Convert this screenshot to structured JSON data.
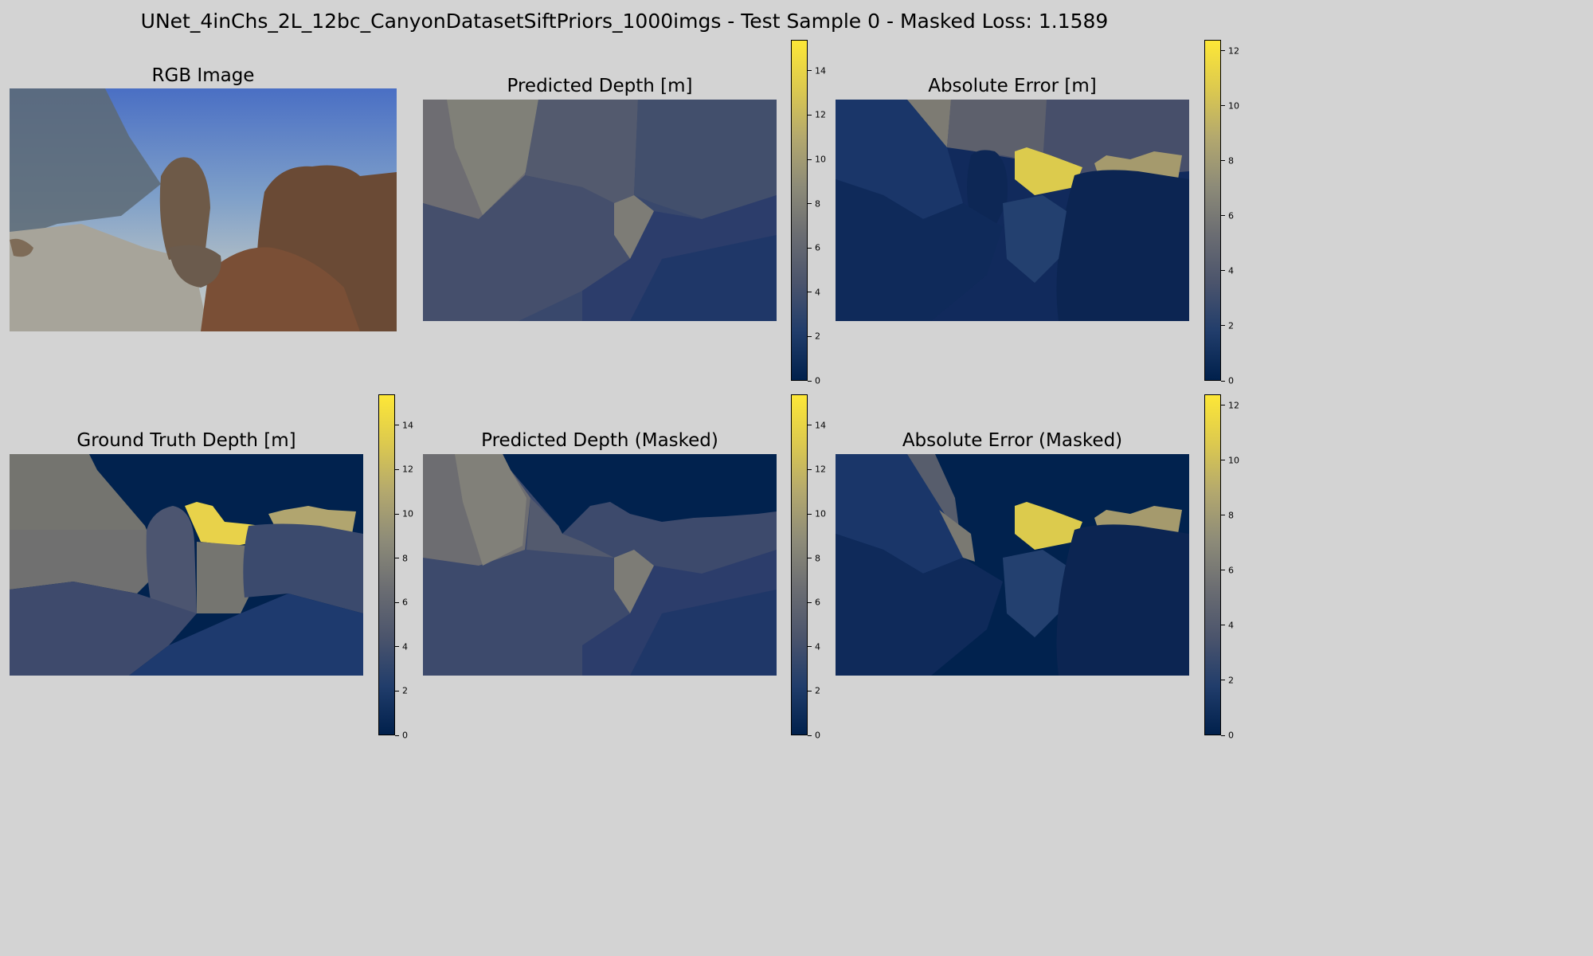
{
  "figure": {
    "suptitle": "UNet_4inChs_2L_12bc_CanyonDatasetSiftPriors_1000imgs - Test Sample 0 - Masked Loss: 1.1589"
  },
  "colormap": {
    "name": "cividis",
    "stops": [
      "#00204c",
      "#213d6b",
      "#4b546c",
      "#6b6d72",
      "#8d8b78",
      "#b3a86e",
      "#dcc94f",
      "#fde737"
    ]
  },
  "chart_data": [
    {
      "type": "image",
      "title": "RGB Image"
    },
    {
      "type": "heatmap",
      "title": "Predicted Depth [m]",
      "colorbar": {
        "min": 0,
        "max": 15.4,
        "ticks": [
          0,
          2,
          4,
          6,
          8,
          10,
          12,
          14
        ]
      }
    },
    {
      "type": "heatmap",
      "title": "Absolute Error [m]",
      "colorbar": {
        "min": 0,
        "max": 12.4,
        "ticks": [
          0,
          2,
          4,
          6,
          8,
          10,
          12
        ]
      }
    },
    {
      "type": "heatmap",
      "title": "Ground Truth Depth [m]",
      "colorbar": {
        "min": 0,
        "max": 15.4,
        "ticks": [
          0,
          2,
          4,
          6,
          8,
          10,
          12,
          14
        ]
      }
    },
    {
      "type": "heatmap",
      "title": "Predicted Depth (Masked)",
      "colorbar": {
        "min": 0,
        "max": 15.4,
        "ticks": [
          0,
          2,
          4,
          6,
          8,
          10,
          12,
          14
        ]
      }
    },
    {
      "type": "heatmap",
      "title": "Absolute Error (Masked)",
      "colorbar": {
        "min": 0,
        "max": 12.4,
        "ticks": [
          0,
          2,
          4,
          6,
          8,
          10,
          12
        ]
      }
    }
  ]
}
